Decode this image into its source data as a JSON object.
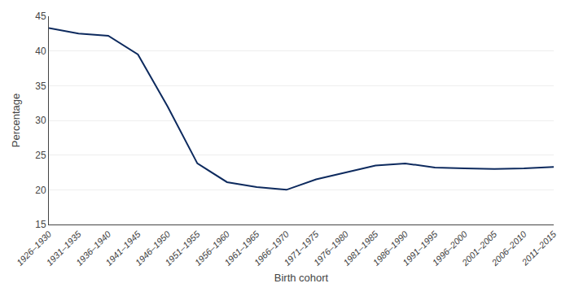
{
  "chart_data": {
    "type": "line",
    "xlabel": "Birth cohort",
    "ylabel": "Percentage",
    "categories": [
      "1926–1930",
      "1931–1935",
      "1936–1940",
      "1941–1945",
      "1946–1950",
      "1951–1955",
      "1956–1960",
      "1961–1965",
      "1966–1970",
      "1971–1975",
      "1976–1980",
      "1981–1985",
      "1986–1990",
      "1991–1995",
      "1996–2000",
      "2001–2005",
      "2006–2010",
      "2011–2015"
    ],
    "values": [
      43.3,
      42.5,
      42.2,
      39.5,
      32.0,
      23.8,
      21.1,
      20.4,
      20.0,
      21.5,
      22.5,
      23.5,
      23.8,
      23.2,
      23.1,
      23.0,
      23.1,
      23.3
    ],
    "color": "#0d2a5e",
    "ylim": [
      15,
      45
    ],
    "yticks": [
      15,
      20,
      25,
      30,
      35,
      40,
      45
    ],
    "grid": true
  }
}
